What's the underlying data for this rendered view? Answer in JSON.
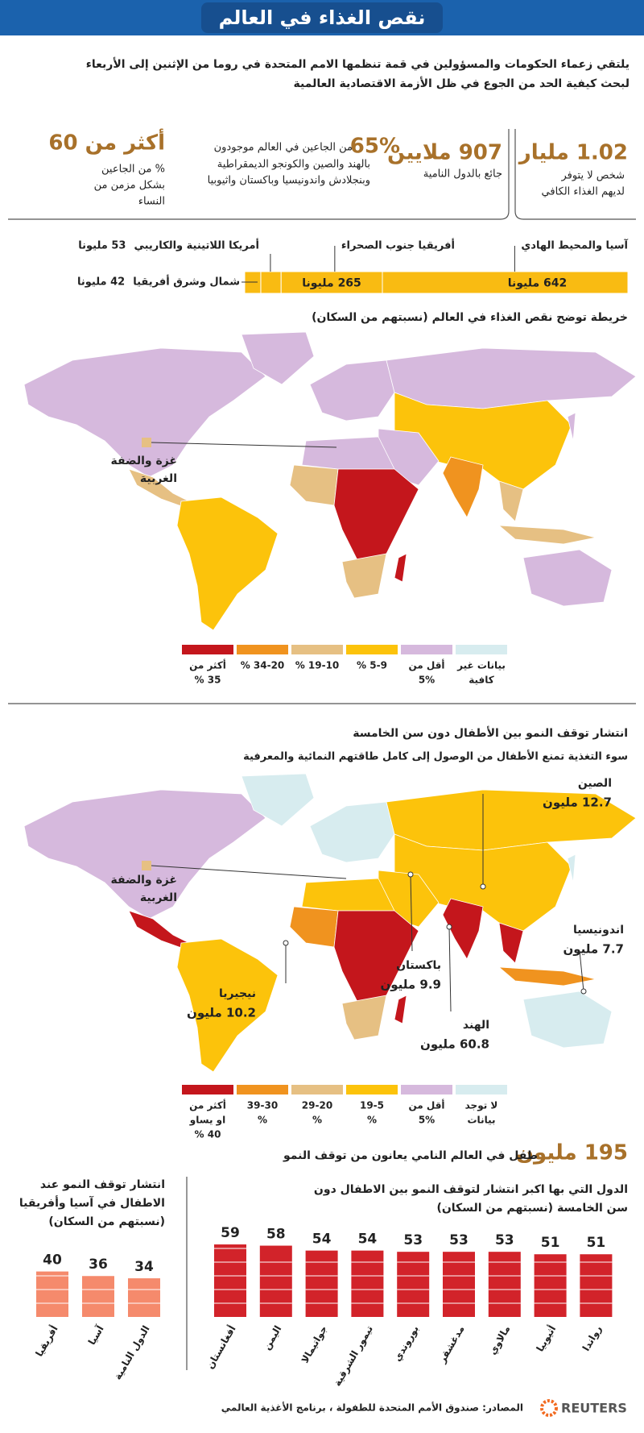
{
  "header": {
    "title": "نقص الغذاء في العالم",
    "intro": [
      "يلتقي زعماء الحكومات والمسؤولين في قمة تنظمها الامم المتحدة في روما من الإثنين إلى الأربعاء",
      "لبحث كيفية الحد من الجوع في ظل الأزمة الاقتصادية العالمية"
    ]
  },
  "stats": [
    {
      "figure": "1.02 مليار",
      "text": [
        "شخص لا يتوفر",
        "لديهم الغذاء الكافي"
      ]
    },
    {
      "figure": "907 ملايين",
      "text": [
        "جائع بالدول النامية"
      ]
    },
    {
      "figure": "65%",
      "text": [
        "من الجاعين في العالم موجودون",
        "بالهند والصين والكونجو الديمقراطية",
        "وبنجلادش واندونيسيا وباكستان واثيوبيا"
      ]
    },
    {
      "figure": "أكثر من 60",
      "text": [
        "% من الجاعين",
        "بشكل مزمن من",
        "النساء"
      ]
    }
  ],
  "maps": [
    {
      "title": "خريطة توضح نقص الغذاء في العالم (نسبتهم من السكان)",
      "gaza": [
        "غزة والضفة",
        "الغربية"
      ],
      "legend": [
        {
          "label": [
            "أكثر من",
            "35 %"
          ],
          "color": "#c4161c"
        },
        {
          "label": [
            "34-20 %"
          ],
          "color": "#f0931f"
        },
        {
          "label": [
            "19-10 %"
          ],
          "color": "#e6c083"
        },
        {
          "label": [
            "5-9 %"
          ],
          "color": "#fcc30b"
        },
        {
          "label": [
            "أقل من",
            "5%"
          ],
          "color": "#d6b9dd"
        },
        {
          "label": [
            "بيانات غير",
            "كافية"
          ],
          "color": "#d7ecef"
        }
      ]
    },
    {
      "title": "انتشار توقف النمو بين الأطفال دون سن الخامسة",
      "subtitle": "سوء التغذية تمنع الأطفال من الوصول إلى كامل طاقتهم النمائية والمعرفية",
      "gaza": [
        "غزة والضفة",
        "الغربية"
      ],
      "callouts": [
        {
          "name": "الصين",
          "value": "12.7 مليون"
        },
        {
          "name": "اندونيسيا",
          "value": "7.7 مليون"
        },
        {
          "name": "باكستان",
          "value": "9.9 مليون"
        },
        {
          "name": "الهند",
          "value": "60.8 مليون"
        },
        {
          "name": "نيجيريا",
          "value": "10.2 مليون"
        }
      ],
      "legend": [
        {
          "label": [
            "أكثر من",
            "او يساو",
            "40 %"
          ],
          "color": "#c4161c"
        },
        {
          "label": [
            "39-30",
            "%"
          ],
          "color": "#f0931f"
        },
        {
          "label": [
            "29-20",
            "%"
          ],
          "color": "#e6c083"
        },
        {
          "label": [
            "19-5",
            "%"
          ],
          "color": "#fcc30b"
        },
        {
          "label": [
            "أقل من",
            "5%"
          ],
          "color": "#d6b9dd"
        },
        {
          "label": [
            "لا توجد",
            "بيانات"
          ],
          "color": "#d7ecef"
        }
      ]
    }
  ],
  "stunting_total": {
    "figure": "195 مليون",
    "text": "طفل في العالم النامي يعانون من توقف النمو"
  },
  "chart_data": [
    {
      "type": "stacked-bar",
      "categories": [
        "آسيا والمحيط الهادي",
        "أفريقيا جنوب الصحراء",
        "أمريكا اللاتينية والكاريبي",
        "شمال وشرق أفريقيا"
      ],
      "values": [
        642,
        265,
        53,
        42
      ],
      "value_labels": [
        "642 مليونا",
        "265 مليونا",
        "53 مليونا",
        "42 مليونا"
      ],
      "color": "#f9bb12"
    },
    {
      "type": "bar",
      "title": [
        "الدول التي بها اكبر انتشار لتوقف النمو بين الاطفال دون",
        "سن الخامسة (نسبتهم من السكان)"
      ],
      "categories": [
        "أفغانستان",
        "اليمن",
        "جواتيمالا",
        "تيمور الشرقية",
        "بوروندي",
        "مدغشقر",
        "مالاوي",
        "أثيوبيا",
        "رواندا"
      ],
      "values": [
        59,
        58,
        54,
        54,
        53,
        53,
        53,
        51,
        51
      ],
      "color": "#d2232a"
    },
    {
      "type": "bar",
      "title": [
        "انتشار توقف النمو عند",
        "الاطفال في آسيا وأفريقيا",
        "(نسبتهم من السكان)"
      ],
      "categories": [
        "أفريقيا",
        "آسيا",
        "الدول النامية"
      ],
      "values": [
        40,
        36,
        34
      ],
      "color": "#f58a6c"
    }
  ],
  "footer": {
    "source": "المصادر: صندوق الأمم المتحدة للطفولة ، برنامج الأغذية العالمي",
    "brand": "REUTERS"
  }
}
